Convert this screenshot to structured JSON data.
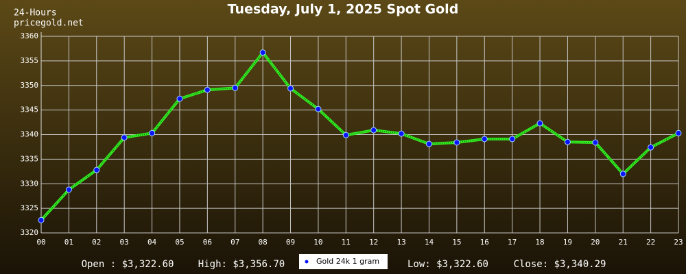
{
  "chart_data": {
    "type": "line",
    "title": "Tuesday, July 1, 2025 Spot Gold",
    "source_labels": [
      "24-Hours",
      "pricegold.net"
    ],
    "categories": [
      "00",
      "01",
      "02",
      "03",
      "04",
      "05",
      "06",
      "07",
      "08",
      "09",
      "10",
      "11",
      "12",
      "13",
      "14",
      "15",
      "16",
      "17",
      "18",
      "19",
      "20",
      "21",
      "22",
      "23"
    ],
    "series": [
      {
        "name": "Gold 24k 1 gram",
        "color": "#33ee22",
        "marker_color": "#0a14ff",
        "values": [
          3322.6,
          3328.8,
          3332.8,
          3339.4,
          3340.3,
          3347.3,
          3349.1,
          3349.5,
          3356.7,
          3349.4,
          3345.2,
          3339.9,
          3340.9,
          3340.2,
          3338.1,
          3338.4,
          3339.1,
          3339.1,
          3342.3,
          3338.5,
          3338.4,
          3332.0,
          3337.4,
          3340.29
        ]
      }
    ],
    "ylim": [
      3320,
      3360
    ],
    "yticks": [
      3320,
      3325,
      3330,
      3335,
      3340,
      3345,
      3350,
      3355,
      3360
    ],
    "grid": true,
    "annotations": [
      "Open : $3,322.60",
      "High: $3,356.70",
      "Low: $3,322.60",
      "Close: $3,340.29"
    ]
  }
}
